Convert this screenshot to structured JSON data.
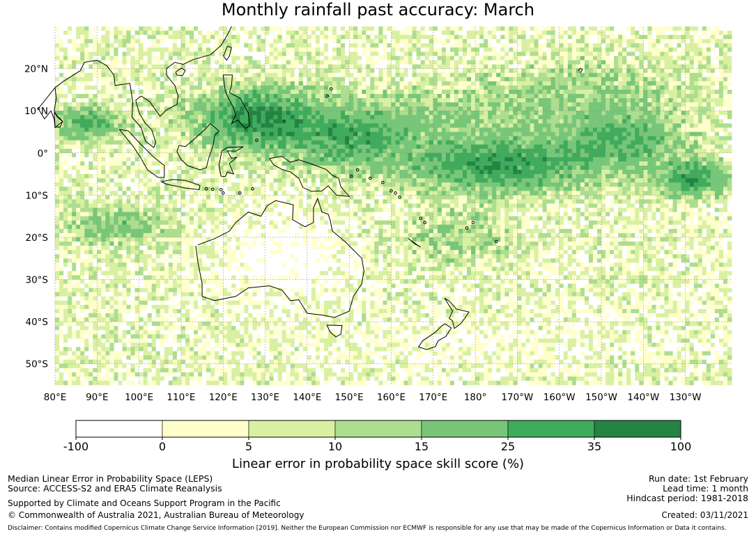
{
  "title": "Monthly rainfall past accuracy: March",
  "map": {
    "lat_labels": [
      "20°N",
      "10°N",
      "0°",
      "10°S",
      "20°S",
      "30°S",
      "40°S",
      "50°S"
    ],
    "lat_values": [
      20,
      10,
      0,
      -10,
      -20,
      -30,
      -40,
      -50
    ],
    "lon_labels": [
      "80°E",
      "90°E",
      "100°E",
      "110°E",
      "120°E",
      "130°E",
      "140°E",
      "150°E",
      "160°E",
      "170°E",
      "180°",
      "170°W",
      "160°W",
      "150°W",
      "140°W",
      "130°W"
    ],
    "lon_values": [
      80,
      90,
      100,
      110,
      120,
      130,
      140,
      150,
      160,
      170,
      180,
      190,
      200,
      210,
      220,
      230
    ],
    "lon_range": [
      80,
      241
    ],
    "lat_range": [
      -55,
      30
    ],
    "grid": true
  },
  "colorbar": {
    "boundaries": [
      "-100",
      "0",
      "5",
      "10",
      "15",
      "25",
      "35",
      "100"
    ],
    "colors": [
      "#ffffff",
      "#ffffcc",
      "#d9f0a3",
      "#addd8e",
      "#78c679",
      "#41ab5d",
      "#238443"
    ],
    "label": "Linear error in probability space skill score (%)"
  },
  "footer": {
    "left": [
      "Median Linear Error in Probability Space (LEPS)",
      "Source: ACCESS-S2 and ERA5 Climate Reanalysis",
      "Supported by Climate and Oceans Support Program in the Pacific",
      "© Commonwealth of Australia 2021, Australian Bureau of Meteorology"
    ],
    "right": [
      "Run date: 1st February",
      "Lead time: 1 month",
      "Hindcast period: 1981-2018",
      "Created: 03/11/2021"
    ],
    "disclaimer": "Disclaimer: Contains modified Copernicus Climate Change Service Information [2019]. Neither the European Commission nor ECMWF is responsible for any use that may be made of the Copernicus Information or Data it contains."
  }
}
